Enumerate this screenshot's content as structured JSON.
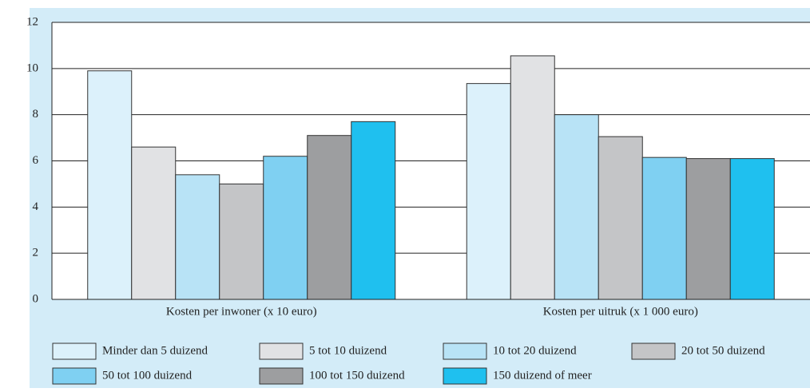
{
  "chart_data": {
    "type": "bar",
    "categories": [
      "Kosten per inwoner (x 10 euro)",
      "Kosten per uitruk (x 1 000 euro)"
    ],
    "series": [
      {
        "name": "Minder dan 5 duizend",
        "color": "#dcf1fb",
        "values": [
          9.9,
          9.35
        ]
      },
      {
        "name": "5 tot 10 duizend",
        "color": "#e1e2e4",
        "values": [
          6.6,
          10.55
        ]
      },
      {
        "name": "10 tot 20 duizend",
        "color": "#b8e3f6",
        "values": [
          5.4,
          8.0
        ]
      },
      {
        "name": "20 tot 50 duizend",
        "color": "#c4c5c7",
        "values": [
          5.0,
          7.05
        ]
      },
      {
        "name": "50 tot 100 duizend",
        "color": "#7fd0f2",
        "values": [
          6.2,
          6.15
        ]
      },
      {
        "name": "100 tot 150 duizend",
        "color": "#9d9ea0",
        "values": [
          7.1,
          6.1
        ]
      },
      {
        "name": "150 duizend of meer",
        "color": "#1fc0ef",
        "values": [
          7.7,
          6.1
        ]
      }
    ],
    "ylim": [
      0,
      12
    ],
    "yticks": [
      0,
      2,
      4,
      6,
      8,
      10,
      12
    ],
    "grid": true,
    "legend": "bottom"
  }
}
